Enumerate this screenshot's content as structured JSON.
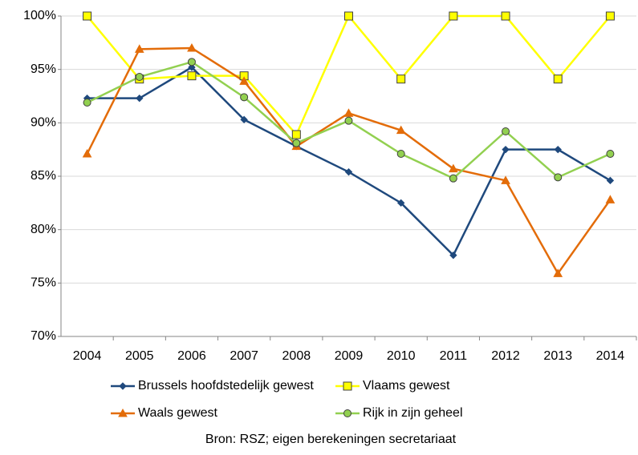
{
  "chart_data": {
    "type": "line",
    "categories": [
      "2004",
      "2005",
      "2006",
      "2007",
      "2008",
      "2009",
      "2010",
      "2011",
      "2012",
      "2013",
      "2014"
    ],
    "series": [
      {
        "name": "Brussels hoofdstedelijk gewest",
        "color": "#1f497d",
        "marker": "diamond",
        "marker_fill": "#1f497d",
        "values": [
          92.3,
          92.3,
          95.2,
          90.3,
          87.8,
          85.4,
          82.5,
          77.6,
          87.5,
          87.5,
          84.6
        ]
      },
      {
        "name": "Vlaams gewest",
        "color": "#ffff00",
        "marker": "square",
        "marker_fill": "#ffff00",
        "values": [
          100,
          94.1,
          94.4,
          94.4,
          88.9,
          100,
          94.1,
          100,
          100,
          94.1,
          100
        ]
      },
      {
        "name": "Waals gewest",
        "color": "#e36c09",
        "marker": "triangle",
        "marker_fill": "#e36c09",
        "values": [
          87.1,
          96.9,
          97.0,
          93.9,
          87.8,
          90.9,
          89.3,
          85.7,
          84.6,
          75.9,
          82.8
        ]
      },
      {
        "name": "Rijk in zijn geheel",
        "color": "#92d050",
        "marker": "circle",
        "marker_fill": "#92d050",
        "values": [
          91.9,
          94.3,
          95.7,
          92.4,
          88.1,
          90.2,
          87.1,
          84.8,
          89.2,
          84.9,
          87.1
        ]
      }
    ],
    "ylim": [
      70,
      100
    ],
    "yticks": [
      {
        "value": 70,
        "label": "70%"
      },
      {
        "value": 75,
        "label": "75%"
      },
      {
        "value": 80,
        "label": "80%"
      },
      {
        "value": 85,
        "label": "85%"
      },
      {
        "value": 90,
        "label": "90%"
      },
      {
        "value": 95,
        "label": "95%"
      },
      {
        "value": 100,
        "label": "100%"
      }
    ],
    "grid": true,
    "source": "Bron: RSZ; eigen berekeningen secretariaat"
  }
}
